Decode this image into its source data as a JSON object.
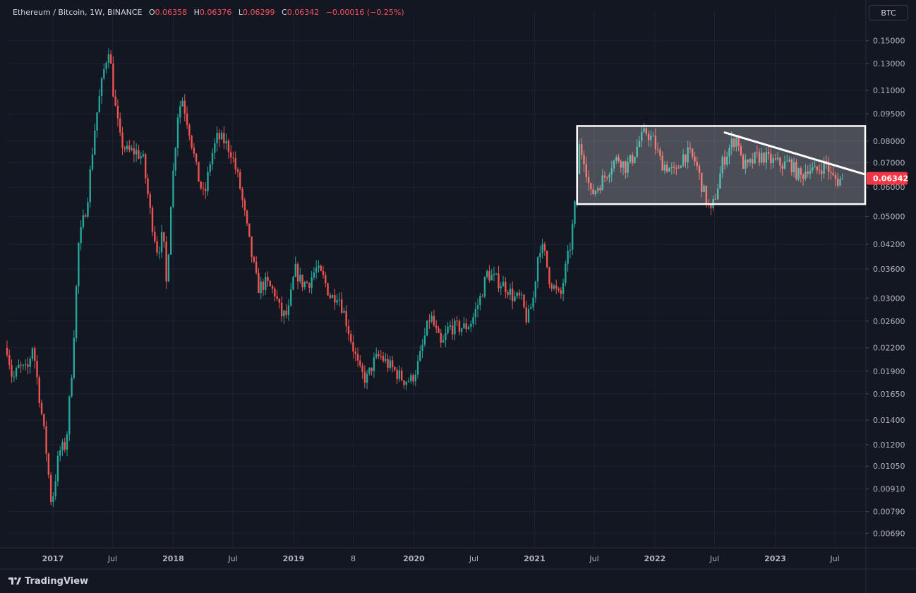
{
  "legend": {
    "symbol": "Ethereum / Bitcoin, 1W, BINANCE",
    "o_label": "O",
    "o_value": "0.06358",
    "h_label": "H",
    "h_value": "0.06376",
    "l_label": "L",
    "l_value": "0.06299",
    "c_label": "C",
    "c_value": "0.06342",
    "change": "−0.00016 (−0.25%)"
  },
  "currency_button": "BTC",
  "brand": {
    "name": "TradingView",
    "icon": "tradingview-logo-icon"
  },
  "colors": {
    "background": "#131722",
    "grid": "#1f2331",
    "up": "#26a69a",
    "down": "#ef5350",
    "text": "#b2b5be",
    "last_price_bg": "#f23645",
    "annotation": "#ffffff"
  },
  "chart_data": {
    "type": "candlestick",
    "title": "Ethereum / Bitcoin, 1W, BINANCE",
    "scale": "log",
    "ylim": [
      0.0063,
      0.165
    ],
    "y_ticks": [
      "0.15000",
      "0.13000",
      "0.11000",
      "0.09500",
      "0.08000",
      "0.07000",
      "0.06000",
      "0.05000",
      "0.04200",
      "0.03600",
      "0.03000",
      "0.02600",
      "0.02200",
      "0.01900",
      "0.01650",
      "0.01400",
      "0.01200",
      "0.01050",
      "0.00910",
      "0.00790",
      "0.00690"
    ],
    "x_range": [
      "2016-08-15",
      "2023-10-01"
    ],
    "x_ticks": [
      {
        "label": "2017",
        "date": "2017-01-01"
      },
      {
        "label": "Jul",
        "date": "2017-07-01"
      },
      {
        "label": "2018",
        "date": "2018-01-01"
      },
      {
        "label": "Jul",
        "date": "2018-07-01"
      },
      {
        "label": "2019",
        "date": "2019-01-01"
      },
      {
        "label": "8",
        "date": "2019-07-01"
      },
      {
        "label": "2020",
        "date": "2020-01-01"
      },
      {
        "label": "Jul",
        "date": "2020-07-01"
      },
      {
        "label": "2021",
        "date": "2021-01-01"
      },
      {
        "label": "Jul",
        "date": "2021-07-01"
      },
      {
        "label": "2022",
        "date": "2022-01-01"
      },
      {
        "label": "Jul",
        "date": "2022-07-01"
      },
      {
        "label": "2023",
        "date": "2023-01-01"
      },
      {
        "label": "Jul",
        "date": "2023-07-01"
      }
    ],
    "last_price": "0.06342",
    "close_path": [
      [
        "2016-08-15",
        0.022
      ],
      [
        "2016-09-01",
        0.018
      ],
      [
        "2016-09-20",
        0.0195
      ],
      [
        "2016-10-15",
        0.019
      ],
      [
        "2016-11-01",
        0.0225
      ],
      [
        "2016-11-20",
        0.0165
      ],
      [
        "2016-12-10",
        0.012
      ],
      [
        "2016-12-28",
        0.0082
      ],
      [
        "2017-01-20",
        0.0115
      ],
      [
        "2017-02-10",
        0.012
      ],
      [
        "2017-03-01",
        0.02
      ],
      [
        "2017-03-20",
        0.042
      ],
      [
        "2017-04-15",
        0.055
      ],
      [
        "2017-05-10",
        0.09
      ],
      [
        "2017-06-05",
        0.125
      ],
      [
        "2017-06-20",
        0.145
      ],
      [
        "2017-07-05",
        0.105
      ],
      [
        "2017-07-25",
        0.08
      ],
      [
        "2017-08-15",
        0.075
      ],
      [
        "2017-09-10",
        0.075
      ],
      [
        "2017-10-01",
        0.072
      ],
      [
        "2017-10-25",
        0.05
      ],
      [
        "2017-11-15",
        0.04
      ],
      [
        "2017-12-01",
        0.045
      ],
      [
        "2017-12-12",
        0.032
      ],
      [
        "2017-12-25",
        0.055
      ],
      [
        "2018-01-15",
        0.095
      ],
      [
        "2018-01-28",
        0.105
      ],
      [
        "2018-02-20",
        0.085
      ],
      [
        "2018-03-15",
        0.065
      ],
      [
        "2018-04-05",
        0.056
      ],
      [
        "2018-04-25",
        0.072
      ],
      [
        "2018-05-15",
        0.082
      ],
      [
        "2018-06-05",
        0.08
      ],
      [
        "2018-06-25",
        0.075
      ],
      [
        "2018-07-20",
        0.062
      ],
      [
        "2018-08-10",
        0.048
      ],
      [
        "2018-08-25",
        0.04
      ],
      [
        "2018-09-15",
        0.032
      ],
      [
        "2018-10-10",
        0.033
      ],
      [
        "2018-11-05",
        0.031
      ],
      [
        "2018-11-25",
        0.027
      ],
      [
        "2018-12-15",
        0.027
      ],
      [
        "2019-01-05",
        0.036
      ],
      [
        "2019-01-25",
        0.033
      ],
      [
        "2019-02-15",
        0.033
      ],
      [
        "2019-03-10",
        0.036
      ],
      [
        "2019-04-01",
        0.034
      ],
      [
        "2019-04-25",
        0.03
      ],
      [
        "2019-05-15",
        0.031
      ],
      [
        "2019-06-05",
        0.027
      ],
      [
        "2019-06-25",
        0.023
      ],
      [
        "2019-07-20",
        0.019
      ],
      [
        "2019-08-10",
        0.018
      ],
      [
        "2019-08-30",
        0.02
      ],
      [
        "2019-09-20",
        0.021
      ],
      [
        "2019-10-10",
        0.02
      ],
      [
        "2019-11-05",
        0.019
      ],
      [
        "2019-11-30",
        0.018
      ],
      [
        "2019-12-25",
        0.018
      ],
      [
        "2020-01-15",
        0.02
      ],
      [
        "2020-02-05",
        0.024
      ],
      [
        "2020-02-20",
        0.027
      ],
      [
        "2020-03-10",
        0.024
      ],
      [
        "2020-03-25",
        0.022
      ],
      [
        "2020-04-15",
        0.025
      ],
      [
        "2020-05-10",
        0.025
      ],
      [
        "2020-06-05",
        0.025
      ],
      [
        "2020-06-25",
        0.026
      ],
      [
        "2020-07-20",
        0.03
      ],
      [
        "2020-08-10",
        0.035
      ],
      [
        "2020-08-30",
        0.034
      ],
      [
        "2020-09-20",
        0.033
      ],
      [
        "2020-10-10",
        0.032
      ],
      [
        "2020-10-30",
        0.03
      ],
      [
        "2020-11-20",
        0.03
      ],
      [
        "2020-12-10",
        0.026
      ],
      [
        "2020-12-28",
        0.03
      ],
      [
        "2021-01-15",
        0.042
      ],
      [
        "2021-01-30",
        0.04
      ],
      [
        "2021-02-15",
        0.034
      ],
      [
        "2021-03-01",
        0.032
      ],
      [
        "2021-03-20",
        0.03
      ],
      [
        "2021-04-05",
        0.036
      ],
      [
        "2021-04-20",
        0.042
      ],
      [
        "2021-05-05",
        0.055
      ],
      [
        "2021-05-15",
        0.078
      ],
      [
        "2021-06-01",
        0.072
      ],
      [
        "2021-06-20",
        0.057
      ],
      [
        "2021-07-10",
        0.06
      ],
      [
        "2021-08-01",
        0.064
      ],
      [
        "2021-08-25",
        0.07
      ],
      [
        "2021-09-15",
        0.072
      ],
      [
        "2021-10-05",
        0.068
      ],
      [
        "2021-10-25",
        0.072
      ],
      [
        "2021-11-15",
        0.08
      ],
      [
        "2021-12-05",
        0.085
      ],
      [
        "2021-12-28",
        0.08
      ],
      [
        "2022-01-20",
        0.07
      ],
      [
        "2022-02-10",
        0.068
      ],
      [
        "2022-03-05",
        0.065
      ],
      [
        "2022-03-25",
        0.073
      ],
      [
        "2022-04-15",
        0.074
      ],
      [
        "2022-05-05",
        0.07
      ],
      [
        "2022-05-25",
        0.06
      ],
      [
        "2022-06-10",
        0.054
      ],
      [
        "2022-06-20",
        0.051
      ],
      [
        "2022-07-10",
        0.06
      ],
      [
        "2022-07-25",
        0.07
      ],
      [
        "2022-08-10",
        0.075
      ],
      [
        "2022-08-25",
        0.08
      ],
      [
        "2022-09-10",
        0.082
      ],
      [
        "2022-09-20",
        0.07
      ],
      [
        "2022-10-10",
        0.068
      ],
      [
        "2022-11-01",
        0.072
      ],
      [
        "2022-11-25",
        0.073
      ],
      [
        "2022-12-15",
        0.071
      ],
      [
        "2023-01-05",
        0.07
      ],
      [
        "2023-01-25",
        0.069
      ],
      [
        "2023-02-15",
        0.07
      ],
      [
        "2023-03-05",
        0.066
      ],
      [
        "2023-03-20",
        0.064
      ],
      [
        "2023-04-10",
        0.068
      ],
      [
        "2023-05-01",
        0.066
      ],
      [
        "2023-05-20",
        0.068
      ],
      [
        "2023-06-05",
        0.07
      ],
      [
        "2023-06-20",
        0.064
      ],
      [
        "2023-07-10",
        0.0625
      ],
      [
        "2023-07-25",
        0.0634
      ]
    ],
    "annotations": {
      "range_box": {
        "from": "2021-05-10",
        "to": "2023-10-01",
        "low": 0.054,
        "high": 0.088
      },
      "trend_line": {
        "from": "2022-08-01",
        "from_value": 0.0845,
        "to": "2023-10-01",
        "to_value": 0.065
      }
    }
  }
}
